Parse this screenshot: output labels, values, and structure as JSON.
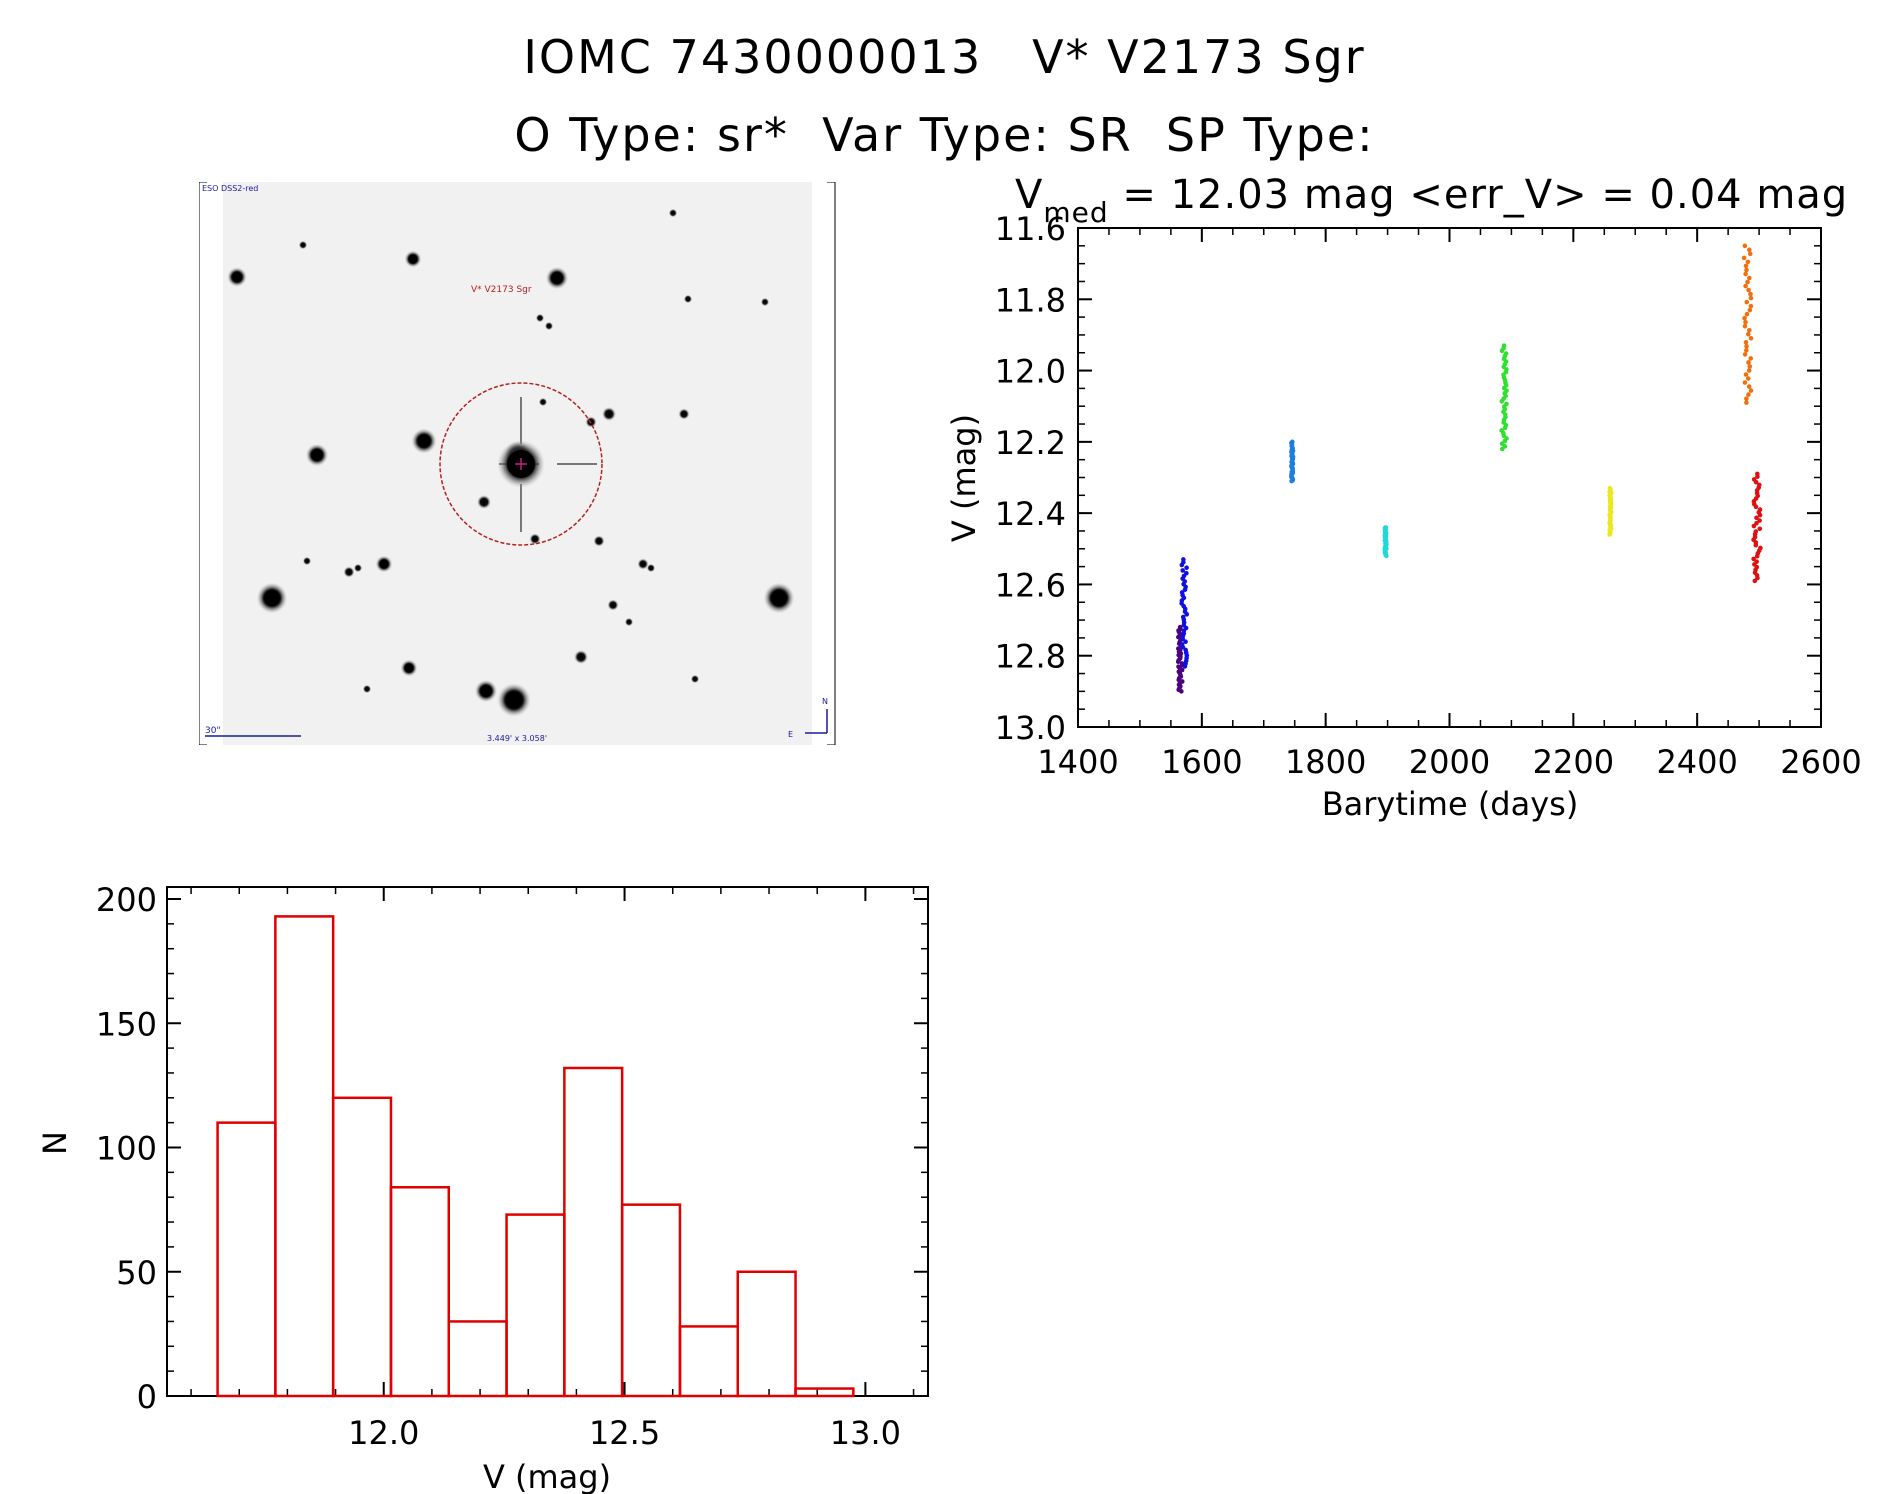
{
  "header": {
    "line1": "IOMC 7430000013   V* V2173 Sgr",
    "line2": "O Type: sr*  Var Type: SR  SP Type:"
  },
  "finder": {
    "top_left_label": "ESO DSS2-red",
    "target_label": "V* V2173 Sgr",
    "scale_label": "30\"",
    "fov_label": "3.449' x 3.058'",
    "north_label": "N",
    "east_label": "E"
  },
  "lightcurve_title": {
    "prefix": "V",
    "subscript": "med",
    "rest": " = 12.03 mag <err_V> = 0.04 mag"
  },
  "chart_data": [
    {
      "type": "scatter",
      "xlabel": "Barytime (days)",
      "ylabel": "V (mag)",
      "xlim": [
        1400,
        2600
      ],
      "ylim": [
        13.0,
        11.6
      ],
      "y_inverted": true,
      "xticks": [
        1400,
        1600,
        1800,
        2000,
        2200,
        2400,
        2600
      ],
      "yticks": [
        11.6,
        11.8,
        12.0,
        12.2,
        12.4,
        12.6,
        12.8,
        13.0
      ],
      "series": [
        {
          "color": "#4b0082",
          "x_range": [
            1560,
            1570
          ],
          "y_range": [
            12.72,
            12.9
          ]
        },
        {
          "color": "#1010e0",
          "x_range": [
            1565,
            1578
          ],
          "y_range": [
            12.53,
            12.83
          ]
        },
        {
          "color": "#1e7fe0",
          "x_range": [
            1744,
            1748
          ],
          "y_range": [
            12.2,
            12.31
          ]
        },
        {
          "color": "#20d8d8",
          "x_range": [
            1895,
            1899
          ],
          "y_range": [
            12.44,
            12.52
          ]
        },
        {
          "color": "#30e030",
          "x_range": [
            2082,
            2094
          ],
          "y_range": [
            11.93,
            12.22
          ]
        },
        {
          "color": "#e8e820",
          "x_range": [
            2258,
            2262
          ],
          "y_range": [
            12.33,
            12.46
          ]
        },
        {
          "color": "#f07010",
          "x_range": [
            2473,
            2490
          ],
          "y_range": [
            11.65,
            12.09
          ]
        },
        {
          "color": "#e01010",
          "x_range": [
            2488,
            2505
          ],
          "y_range": [
            12.29,
            12.59
          ]
        }
      ]
    },
    {
      "type": "bar",
      "xlabel": "V (mag)",
      "ylabel": "N",
      "xlim": [
        11.55,
        13.13
      ],
      "ylim": [
        0,
        200
      ],
      "xticks": [
        12.0,
        12.5,
        13.0
      ],
      "xtick_labels": [
        "12.0",
        "12.5",
        "13.0"
      ],
      "yticks": [
        0,
        50,
        100,
        150,
        200
      ],
      "bin_edges": [
        11.655,
        11.775,
        11.895,
        12.015,
        12.135,
        12.255,
        12.375,
        12.495,
        12.615,
        12.735,
        12.855,
        12.975
      ],
      "values": [
        110,
        193,
        120,
        84,
        30,
        73,
        132,
        77,
        28,
        50,
        3
      ],
      "color": "#e00000"
    }
  ]
}
